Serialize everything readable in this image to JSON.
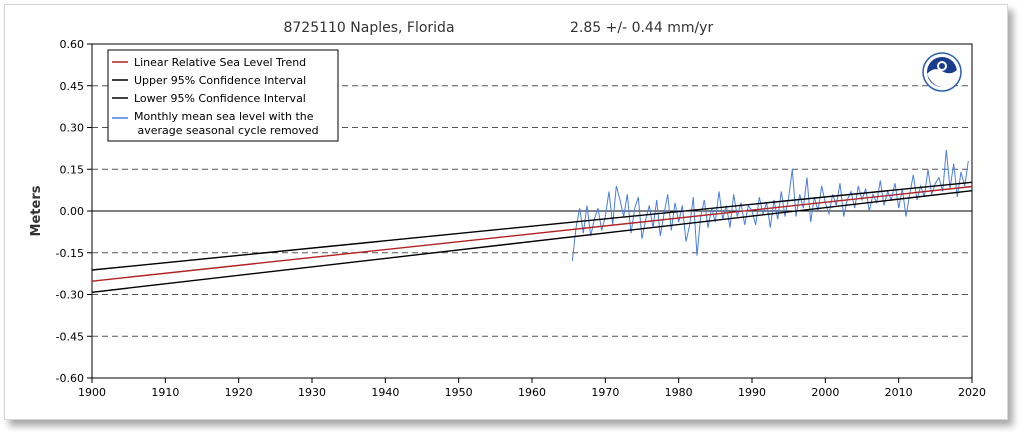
{
  "chart_data": {
    "type": "line",
    "title": "8725110 Naples, Florida",
    "trend_text": "2.85 +/-  0.44 mm/yr",
    "ylabel": "Meters",
    "xlim": [
      1900,
      2020
    ],
    "ylim": [
      -0.6,
      0.6
    ],
    "x_ticks": [
      "1900",
      "1910",
      "1920",
      "1930",
      "1940",
      "1950",
      "1960",
      "1970",
      "1980",
      "1990",
      "2000",
      "2010",
      "2020"
    ],
    "y_ticks": [
      "0.60",
      "0.45",
      "0.30",
      "0.15",
      "0.00",
      "-0.15",
      "-0.30",
      "-0.45",
      "-0.60"
    ],
    "grid": "dashed horizontal",
    "legend_position": "top-left",
    "logo": "noaa-logo",
    "series": [
      {
        "name": "Linear Relative Sea Level Trend",
        "color": "#b22222",
        "x": [
          1900,
          2020
        ],
        "y": [
          -0.252,
          0.088
        ]
      },
      {
        "name": "Upper 95% Confidence Interval",
        "color": "#000000",
        "x": [
          1900,
          2020
        ],
        "y": [
          -0.212,
          0.103
        ]
      },
      {
        "name": "Lower 95% Confidence Interval",
        "color": "#000000",
        "x": [
          1900,
          2020
        ],
        "y": [
          -0.292,
          0.073
        ]
      },
      {
        "name": "Monthly mean sea level with the average seasonal cycle removed",
        "legend_lines": [
          "Monthly mean sea level with the",
          " average seasonal cycle removed"
        ],
        "color": "#4a7ee0",
        "x": [
          1965.5,
          1966.0,
          1966.5,
          1967.0,
          1967.5,
          1968.0,
          1968.5,
          1969.0,
          1969.5,
          1970.0,
          1970.5,
          1971.0,
          1971.5,
          1972.0,
          1972.5,
          1973.0,
          1973.5,
          1974.0,
          1974.5,
          1975.0,
          1975.5,
          1976.0,
          1976.5,
          1977.0,
          1977.5,
          1978.0,
          1978.5,
          1979.0,
          1979.5,
          1980.0,
          1980.5,
          1981.0,
          1981.5,
          1982.0,
          1982.5,
          1983.0,
          1983.5,
          1984.0,
          1984.5,
          1985.0,
          1985.5,
          1986.0,
          1986.5,
          1987.0,
          1987.5,
          1988.0,
          1988.5,
          1989.0,
          1989.5,
          1990.0,
          1990.5,
          1991.0,
          1991.5,
          1992.0,
          1992.5,
          1993.0,
          1993.5,
          1994.0,
          1994.5,
          1995.0,
          1995.5,
          1996.0,
          1996.5,
          1997.0,
          1997.5,
          1998.0,
          1998.5,
          1999.0,
          1999.5,
          2000.0,
          2000.5,
          2001.0,
          2001.5,
          2002.0,
          2002.5,
          2003.0,
          2003.5,
          2004.0,
          2004.5,
          2005.0,
          2005.5,
          2006.0,
          2006.5,
          2007.0,
          2007.5,
          2008.0,
          2008.5,
          2009.0,
          2009.5,
          2010.0,
          2010.5,
          2011.0,
          2011.5,
          2012.0,
          2012.5,
          2013.0,
          2013.5,
          2014.0,
          2014.5,
          2015.0,
          2015.5,
          2016.0,
          2016.5,
          2017.0,
          2017.5,
          2018.0,
          2018.5,
          2019.0,
          2019.5
        ],
        "y": [
          -0.18,
          -0.06,
          0.01,
          -0.08,
          0.02,
          -0.09,
          -0.03,
          0.01,
          -0.07,
          -0.02,
          0.07,
          -0.05,
          0.09,
          0.04,
          -0.02,
          0.06,
          -0.08,
          0.01,
          0.05,
          -0.1,
          -0.03,
          0.02,
          -0.06,
          0.04,
          -0.09,
          -0.01,
          0.06,
          -0.07,
          0.03,
          -0.04,
          0.02,
          -0.11,
          -0.05,
          0.05,
          -0.16,
          -0.02,
          0.04,
          -0.06,
          0.01,
          -0.04,
          0.07,
          -0.03,
          0.02,
          -0.06,
          0.06,
          -0.02,
          0.03,
          -0.05,
          0.02,
          0.0,
          -0.05,
          0.05,
          -0.01,
          0.03,
          -0.06,
          0.04,
          -0.03,
          0.07,
          -0.02,
          0.05,
          0.15,
          -0.02,
          0.06,
          0.01,
          0.12,
          -0.04,
          0.05,
          0.0,
          0.09,
          0.03,
          -0.01,
          0.06,
          0.02,
          0.1,
          -0.02,
          0.04,
          0.07,
          0.01,
          0.09,
          0.04,
          0.08,
          0.0,
          0.06,
          0.03,
          0.11,
          0.02,
          0.07,
          0.04,
          0.1,
          0.01,
          0.08,
          -0.02,
          0.06,
          0.13,
          0.04,
          0.09,
          0.05,
          0.15,
          0.06,
          0.1,
          0.12,
          0.07,
          0.22,
          0.08,
          0.17,
          0.05,
          0.14,
          0.09,
          0.18
        ]
      }
    ]
  }
}
